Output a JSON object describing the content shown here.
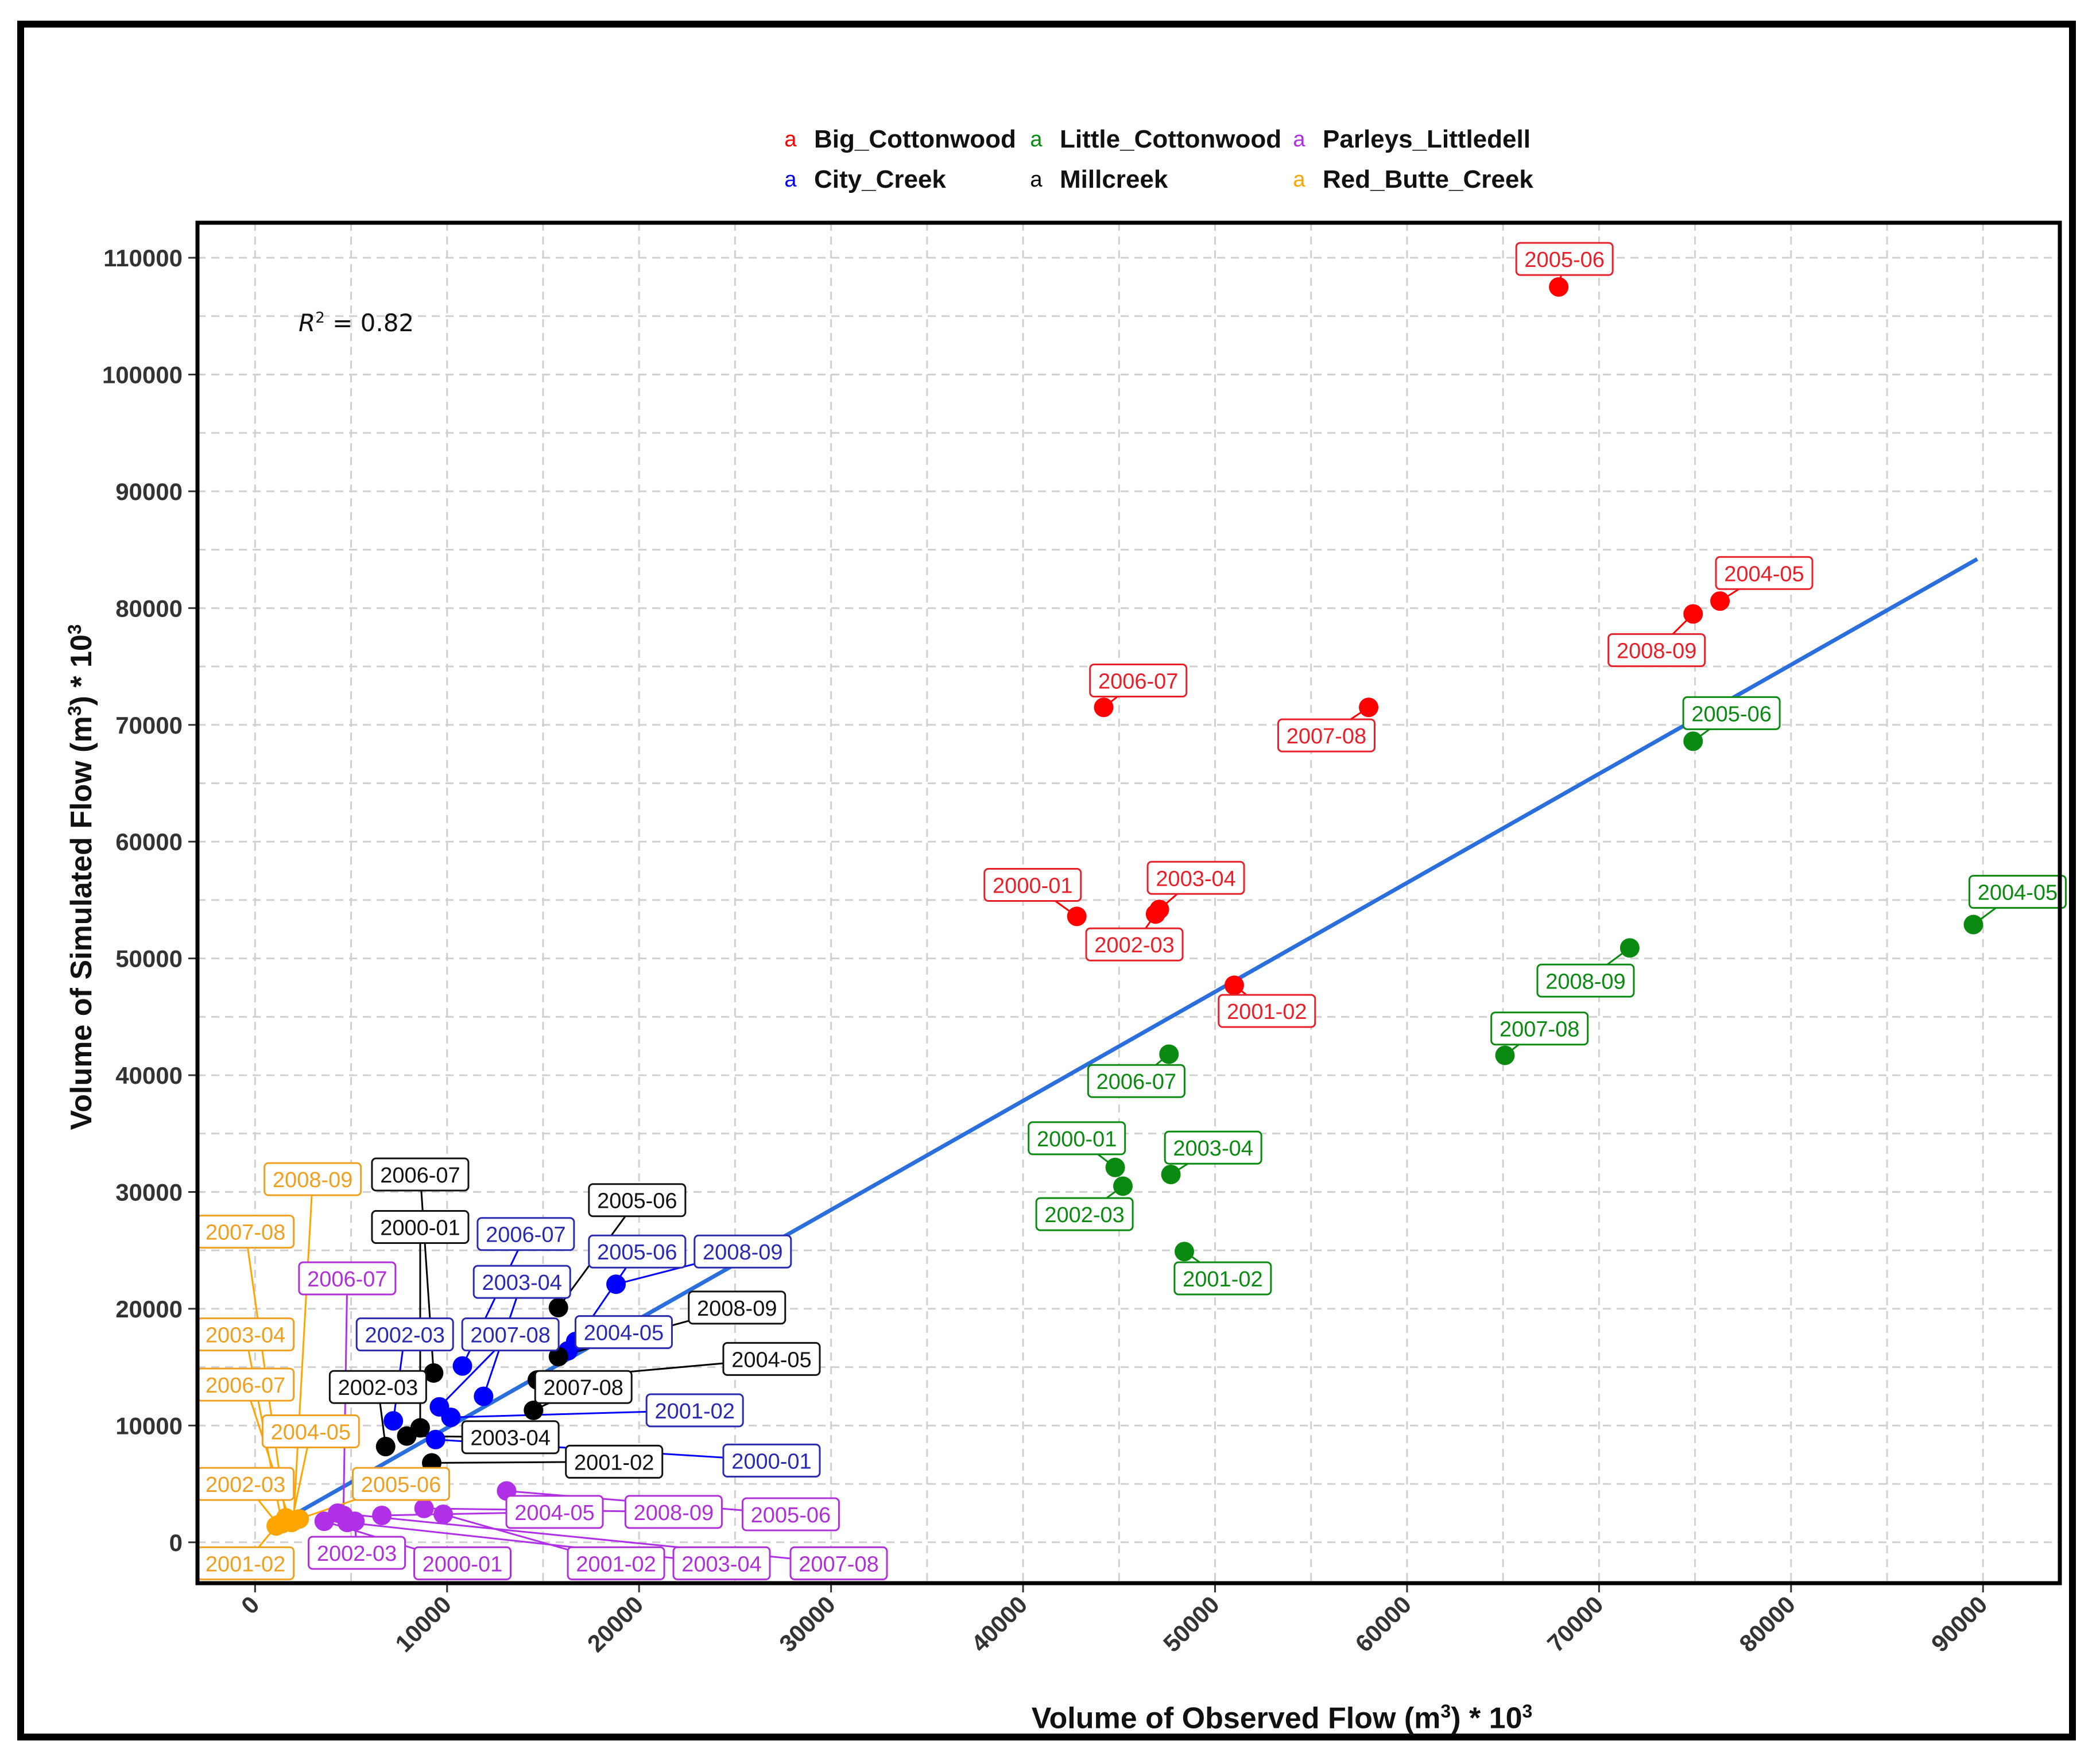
{
  "chart_data": {
    "type": "scatter",
    "xlabel": "Volume of Observed Flow (m³) * 10³",
    "ylabel": "Volume of Simulated Flow (m³) * 10³",
    "xlabel_parts": {
      "main": "Volume of Observed Flow (m",
      "sup1": "3",
      "mid": ") * 10",
      "sup2": "3"
    },
    "ylabel_parts": {
      "main": "Volume of Simulated Flow (m",
      "sup1": "3",
      "mid": ") * 10",
      "sup2": "3"
    },
    "annotation": {
      "label": "R",
      "sup": "2",
      "value": " = 0.82"
    },
    "xlim": [
      -3000,
      94000
    ],
    "ylim": [
      -3500,
      113000
    ],
    "x_ticks": [
      0,
      10000,
      20000,
      30000,
      40000,
      50000,
      60000,
      70000,
      80000,
      90000
    ],
    "y_ticks": [
      0,
      10000,
      20000,
      30000,
      40000,
      50000,
      60000,
      70000,
      80000,
      90000,
      100000,
      110000
    ],
    "grid": true,
    "legend_position": "top",
    "legend_key_glyph": "a",
    "fit_line": {
      "x": [
        1000,
        89700
      ],
      "y": [
        1400,
        84200
      ],
      "color": "#2a6fdb"
    },
    "series": [
      {
        "name": "Big_Cottonwood",
        "color": "#ff0000",
        "label_color": "#e8202a",
        "points": [
          {
            "label": "2005-06",
            "x": 67900,
            "y": 107500,
            "lx": 68200,
            "ly": 109900
          },
          {
            "label": "2004-05",
            "x": 76300,
            "y": 80600,
            "lx": 78600,
            "ly": 83000
          },
          {
            "label": "2008-09",
            "x": 74900,
            "y": 79500,
            "lx": 73000,
            "ly": 76400
          },
          {
            "label": "2006-07",
            "x": 44200,
            "y": 71500,
            "lx": 46000,
            "ly": 73800
          },
          {
            "label": "2007-08",
            "x": 58000,
            "y": 71500,
            "lx": 55800,
            "ly": 69100
          },
          {
            "label": "2003-04",
            "x": 47100,
            "y": 54200,
            "lx": 49000,
            "ly": 56900
          },
          {
            "label": "2000-01",
            "x": 42800,
            "y": 53600,
            "lx": 40500,
            "ly": 56300
          },
          {
            "label": "2002-03",
            "x": 46900,
            "y": 53800,
            "lx": 45800,
            "ly": 51200
          },
          {
            "label": "2001-02",
            "x": 51000,
            "y": 47700,
            "lx": 52700,
            "ly": 45500
          }
        ]
      },
      {
        "name": "City_Creek",
        "color": "#0000ff",
        "label_color": "#2a2ab0",
        "points": [
          {
            "label": "2008-09",
            "x": 18800,
            "y": 22100,
            "lx": 25400,
            "ly": 24900
          },
          {
            "label": "2006-07",
            "x": 10800,
            "y": 15100,
            "lx": 14100,
            "ly": 26400
          },
          {
            "label": "2005-06",
            "x": 16700,
            "y": 17200,
            "lx": 19900,
            "ly": 24900
          },
          {
            "label": "2003-04",
            "x": 11900,
            "y": 12500,
            "lx": 13900,
            "ly": 22300
          },
          {
            "label": "2002-03",
            "x": 7200,
            "y": 10400,
            "lx": 7800,
            "ly": 17800
          },
          {
            "label": "2007-08",
            "x": 9600,
            "y": 11600,
            "lx": 13300,
            "ly": 17800
          },
          {
            "label": "2004-05",
            "x": 16300,
            "y": 16400,
            "lx": 19200,
            "ly": 18000
          },
          {
            "label": "2001-02",
            "x": 10200,
            "y": 10700,
            "lx": 22900,
            "ly": 11300
          },
          {
            "label": "2000-01",
            "x": 9400,
            "y": 8800,
            "lx": 26900,
            "ly": 7000
          }
        ]
      },
      {
        "name": "Little_Cottonwood",
        "color": "#0a8a10",
        "label_color": "#0a8a10",
        "points": [
          {
            "label": "2005-06",
            "x": 74900,
            "y": 68600,
            "lx": 76900,
            "ly": 71000
          },
          {
            "label": "2004-05",
            "x": 89500,
            "y": 52900,
            "lx": 91800,
            "ly": 55700
          },
          {
            "label": "2008-09",
            "x": 71600,
            "y": 50900,
            "lx": 69300,
            "ly": 48100
          },
          {
            "label": "2007-08",
            "x": 65100,
            "y": 41700,
            "lx": 66900,
            "ly": 44000
          },
          {
            "label": "2006-07",
            "x": 47600,
            "y": 41800,
            "lx": 45900,
            "ly": 39500
          },
          {
            "label": "2000-01",
            "x": 44800,
            "y": 32100,
            "lx": 42800,
            "ly": 34600
          },
          {
            "label": "2003-04",
            "x": 47700,
            "y": 31500,
            "lx": 49900,
            "ly": 33800
          },
          {
            "label": "2002-03",
            "x": 45200,
            "y": 30500,
            "lx": 43200,
            "ly": 28100
          },
          {
            "label": "2001-02",
            "x": 48400,
            "y": 24900,
            "lx": 50400,
            "ly": 22600
          }
        ]
      },
      {
        "name": "Millcreek",
        "color": "#000000",
        "label_color": "#111111",
        "points": [
          {
            "label": "2006-07",
            "x": 9300,
            "y": 14500,
            "lx": 8600,
            "ly": 31500
          },
          {
            "label": "2000-01",
            "x": 8600,
            "y": 9800,
            "lx": 8600,
            "ly": 27000
          },
          {
            "label": "2005-06",
            "x": 15800,
            "y": 20100,
            "lx": 19900,
            "ly": 29300
          },
          {
            "label": "2008-09",
            "x": 15800,
            "y": 15900,
            "lx": 25100,
            "ly": 20100
          },
          {
            "label": "2004-05",
            "x": 14700,
            "y": 13900,
            "lx": 26900,
            "ly": 15700
          },
          {
            "label": "2007-08",
            "x": 14500,
            "y": 11300,
            "lx": 17100,
            "ly": 13300
          },
          {
            "label": "2002-03",
            "x": 6800,
            "y": 8200,
            "lx": 6400,
            "ly": 13300
          },
          {
            "label": "2003-04",
            "x": 7900,
            "y": 9100,
            "lx": 13300,
            "ly": 9000
          },
          {
            "label": "2001-02",
            "x": 9200,
            "y": 6800,
            "lx": 18700,
            "ly": 6900
          }
        ]
      },
      {
        "name": "Parleys_Littledell",
        "color": "#b030e8",
        "label_color": "#b030d8",
        "points": [
          {
            "label": "2006-07",
            "x": 4600,
            "y": 2300,
            "lx": 4800,
            "ly": 22600
          },
          {
            "label": "2005-06",
            "x": 13100,
            "y": 4400,
            "lx": 27900,
            "ly": 2400
          },
          {
            "label": "2008-09",
            "x": 8800,
            "y": 2900,
            "lx": 21800,
            "ly": 2600
          },
          {
            "label": "2004-05",
            "x": 6600,
            "y": 2300,
            "lx": 15600,
            "ly": 2600
          },
          {
            "label": "2002-03",
            "x": 5200,
            "y": 1800,
            "lx": 5300,
            "ly": -900
          },
          {
            "label": "2000-01",
            "x": 3600,
            "y": 1800,
            "lx": 10800,
            "ly": -1800
          },
          {
            "label": "2001-02",
            "x": 9800,
            "y": 2400,
            "lx": 18800,
            "ly": -1800
          },
          {
            "label": "2003-04",
            "x": 4800,
            "y": 1700,
            "lx": 24300,
            "ly": -1800
          },
          {
            "label": "2007-08",
            "x": 4300,
            "y": 2500,
            "lx": 30400,
            "ly": -1800
          }
        ]
      },
      {
        "name": "Red_Butte_Creek",
        "color": "#ffa500",
        "label_color": "#f0a020",
        "points": [
          {
            "label": "2008-09",
            "x": 2000,
            "y": 1800,
            "lx": 3000,
            "ly": 31100
          },
          {
            "label": "2007-08",
            "x": 1600,
            "y": 2100,
            "lx": -500,
            "ly": 26600
          },
          {
            "label": "2003-04",
            "x": 1400,
            "y": 1600,
            "lx": -500,
            "ly": 17800
          },
          {
            "label": "2006-07",
            "x": 1800,
            "y": 1900,
            "lx": -500,
            "ly": 13500
          },
          {
            "label": "2004-05",
            "x": 1900,
            "y": 1700,
            "lx": 2900,
            "ly": 9500
          },
          {
            "label": "2002-03",
            "x": 1200,
            "y": 1500,
            "lx": -500,
            "ly": 5000
          },
          {
            "label": "2005-06",
            "x": 2300,
            "y": 2000,
            "lx": 7600,
            "ly": 5000
          },
          {
            "label": "2001-02",
            "x": 1100,
            "y": 1400,
            "lx": -500,
            "ly": -1800
          }
        ]
      }
    ]
  }
}
